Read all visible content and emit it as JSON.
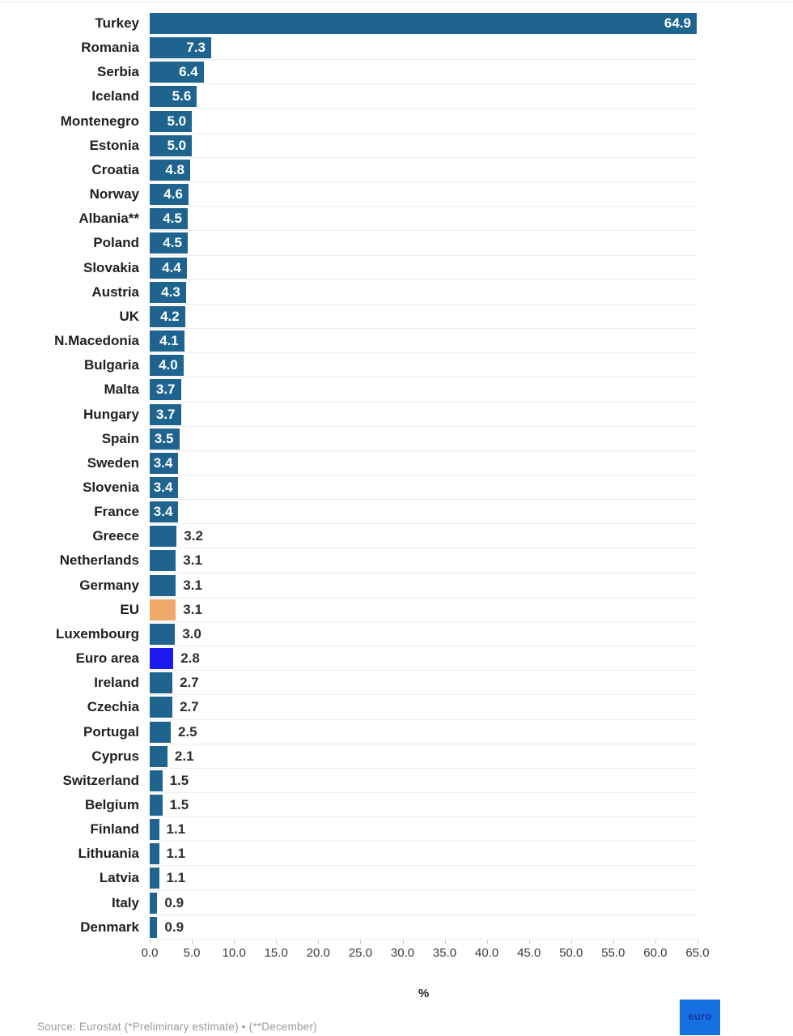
{
  "chart_data": {
    "type": "bar",
    "orientation": "horizontal",
    "title": "",
    "xlabel": "%",
    "xlim": [
      0,
      65
    ],
    "grid": "horizontal-row-lines",
    "x_ticks": [
      "0.0",
      "5.0",
      "10.0",
      "15.0",
      "20.0",
      "25.0",
      "30.0",
      "35.0",
      "40.0",
      "45.0",
      "50.0",
      "55.0",
      "60.0",
      "65.0"
    ],
    "categories": [
      "Turkey",
      "Romania",
      "Serbia",
      "Iceland",
      "Montenegro",
      "Estonia",
      "Croatia",
      "Norway",
      "Albania**",
      "Poland",
      "Slovakia",
      "Austria",
      "UK",
      "N.Macedonia",
      "Bulgaria",
      "Malta",
      "Hungary",
      "Spain",
      "Sweden",
      "Slovenia",
      "France",
      "Greece",
      "Netherlands",
      "Germany",
      "EU",
      "Luxembourg",
      "Euro area",
      "Ireland",
      "Czechia",
      "Portugal",
      "Cyprus",
      "Switzerland",
      "Belgium",
      "Finland",
      "Lithuania",
      "Latvia",
      "Italy",
      "Denmark"
    ],
    "values": [
      64.9,
      7.3,
      6.4,
      5.6,
      5.0,
      5.0,
      4.8,
      4.6,
      4.5,
      4.5,
      4.4,
      4.3,
      4.2,
      4.1,
      4.0,
      3.7,
      3.7,
      3.5,
      3.4,
      3.4,
      3.4,
      3.2,
      3.1,
      3.1,
      3.1,
      3.0,
      2.8,
      2.7,
      2.7,
      2.5,
      2.1,
      1.5,
      1.5,
      1.1,
      1.1,
      1.1,
      0.9,
      0.9
    ],
    "value_labels": [
      "64.9",
      "7.3",
      "6.4",
      "5.6",
      "5.0",
      "5.0",
      "4.8",
      "4.6",
      "4.5",
      "4.5",
      "4.4",
      "4.3",
      "4.2",
      "4.1",
      "4.0",
      "3.7",
      "3.7",
      "3.5",
      "3.4",
      "3.4",
      "3.4",
      "3.2",
      "3.1",
      "3.1",
      "3.1",
      "3.0",
      "2.8",
      "2.7",
      "2.7",
      "2.5",
      "2.1",
      "1.5",
      "1.5",
      "1.1",
      "1.1",
      "1.1",
      "0.9",
      "0.9"
    ],
    "highlighted_bars": {
      "EU": "#efa868",
      "Euro area": "#1b1bef"
    },
    "source": "Source: Eurostat (*Preliminary estimate) • (**December)"
  },
  "colors": {
    "bar_default": "#1e648f",
    "bar_eu": "#efa868",
    "bar_euro_area": "#1b1bef",
    "gridline": "#ededed",
    "value_inside": "#ffffff",
    "value_outside": "#2e2e2e",
    "logo_background": "#1770e2"
  },
  "logo": {
    "text": "euro"
  }
}
